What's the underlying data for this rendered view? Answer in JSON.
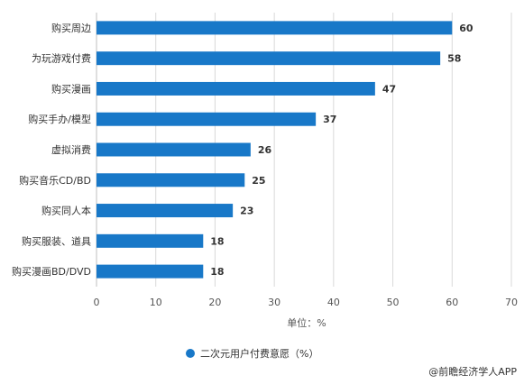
{
  "colors": {
    "bar": "#1878C8",
    "grid": "#d9d9d9",
    "axis": "#bfbfbf"
  },
  "chart_data": {
    "type": "bar",
    "orientation": "horizontal",
    "categories": [
      "购买周边",
      "为玩游戏付费",
      "购买漫画",
      "购买手办/模型",
      "虚拟消费",
      "购买音乐CD/BD",
      "购买同人本",
      "购买服装、道具",
      "购买漫画BD/DVD"
    ],
    "series": [
      {
        "name": "二次元用户付费意愿（%）",
        "values": [
          60,
          58,
          47,
          37,
          26,
          25,
          23,
          18,
          18
        ]
      }
    ],
    "xlabel": "单位：%",
    "xlim": [
      0,
      70
    ],
    "xticks": [
      0,
      10,
      20,
      30,
      40,
      50,
      60,
      70
    ],
    "grid": true,
    "legend_position": "bottom"
  },
  "credit": "@前瞻经济学人APP"
}
